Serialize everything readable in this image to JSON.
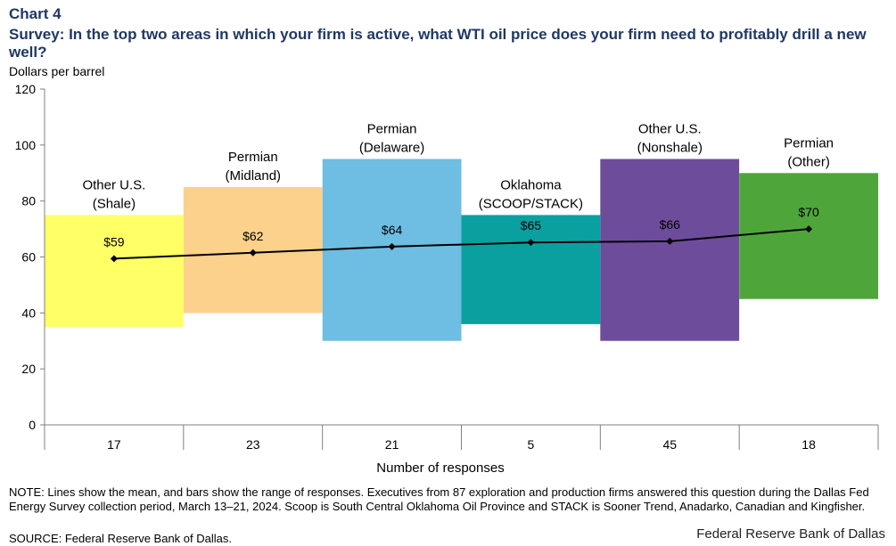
{
  "chart_label": "Chart 4",
  "title": "Survey: In the top two areas in which your firm is active, what WTI oil price does your firm need to profitably drill a new well?",
  "note": "NOTE: Lines show the mean, and bars show the range of responses. Executives from 87 exploration and production firms answered this question during the Dallas Fed Energy Survey collection period, March 13–21, 2024. Scoop is South Central Oklahoma Oil Province and STACK is Sooner Trend, Anadarko, Canadian and Kingfisher.",
  "source": "SOURCE: Federal Reserve Bank of Dallas.",
  "brand": "Federal Reserve Bank of Dallas",
  "chart_data": {
    "type": "bar",
    "subtype": "floating-range-with-mean-line",
    "ylabel": "Dollars per barrel",
    "xlabel": "Number of responses",
    "ylim": [
      0,
      120
    ],
    "yticks": [
      0,
      20,
      40,
      60,
      80,
      100,
      120
    ],
    "grid": false,
    "categories": [
      {
        "name_line1": "Other U.S.",
        "name_line2": "(Shale)",
        "responses": "17",
        "low": 35,
        "high": 75,
        "mean": 59.4,
        "mean_label": "$59",
        "color": "#ffff66"
      },
      {
        "name_line1": "Permian",
        "name_line2": "(Midland)",
        "responses": "23",
        "low": 40,
        "high": 85,
        "mean": 61.5,
        "mean_label": "$62",
        "color": "#fbd18b"
      },
      {
        "name_line1": "Permian",
        "name_line2": "(Delaware)",
        "responses": "21",
        "low": 30,
        "high": 95,
        "mean": 63.7,
        "mean_label": "$64",
        "color": "#6ebde3"
      },
      {
        "name_line1": "Oklahoma",
        "name_line2": "(SCOOP/STACK)",
        "responses": "5",
        "low": 36,
        "high": 75,
        "mean": 65.2,
        "mean_label": "$65",
        "color": "#0aa0a0"
      },
      {
        "name_line1": "Other U.S.",
        "name_line2": "(Nonshale)",
        "responses": "45",
        "low": 30,
        "high": 95,
        "mean": 65.6,
        "mean_label": "$66",
        "color": "#6e4c9c"
      },
      {
        "name_line1": "Permian",
        "name_line2": "(Other)",
        "responses": "18",
        "low": 45,
        "high": 90,
        "mean": 70,
        "mean_label": "$70",
        "color": "#4ea63a"
      }
    ]
  }
}
